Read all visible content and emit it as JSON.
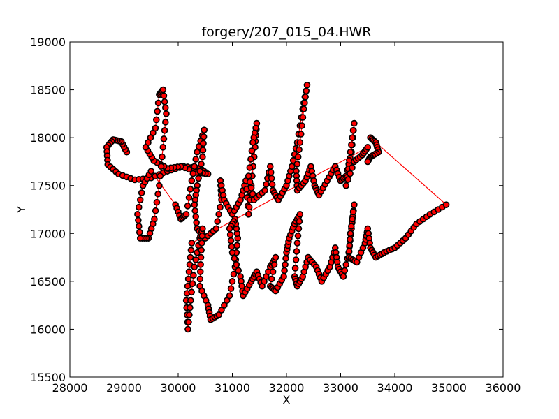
{
  "chart_data": {
    "type": "scatter",
    "title": "forgery/207_015_04.HWR",
    "xlabel": "X",
    "ylabel": "Y",
    "xlim": [
      28000,
      36000
    ],
    "ylim": [
      15500,
      19000
    ],
    "xticks": [
      "28000",
      "29000",
      "30000",
      "31000",
      "32000",
      "33000",
      "34000",
      "35000",
      "36000"
    ],
    "yticks": [
      "15500",
      "16000",
      "16500",
      "17000",
      "17500",
      "18000",
      "18500",
      "19000"
    ],
    "grid": false,
    "legend": "none",
    "marker_face_color": "#ff0000",
    "marker_edge_color": "#000000",
    "line_color": "#ff0000",
    "series": [
      {
        "points": [
          [
            29050,
            17850
          ],
          [
            28950,
            17960
          ],
          [
            28800,
            17980
          ],
          [
            28680,
            17900
          ],
          [
            28700,
            17720
          ],
          [
            28900,
            17620
          ],
          [
            29200,
            17560
          ],
          [
            29500,
            17580
          ],
          [
            29800,
            17650
          ],
          [
            30100,
            17700
          ],
          [
            30400,
            17680
          ],
          [
            30550,
            17620
          ],
          [
            30350,
            17640
          ],
          [
            30050,
            17700
          ],
          [
            29800,
            17680
          ],
          [
            29550,
            17760
          ],
          [
            29400,
            17900
          ],
          [
            29580,
            18100
          ],
          [
            29650,
            18450
          ],
          [
            29720,
            18500
          ],
          [
            29780,
            18250
          ],
          [
            29720,
            17900
          ],
          [
            29650,
            17500
          ],
          [
            29560,
            17150
          ],
          [
            29450,
            16950
          ],
          [
            29300,
            16950
          ],
          [
            29250,
            17200
          ],
          [
            29350,
            17500
          ],
          [
            29500,
            17650
          ]
        ]
      },
      {
        "points": [
          [
            29950,
            17300
          ],
          [
            30050,
            17150
          ],
          [
            30150,
            17200
          ],
          [
            30250,
            17550
          ],
          [
            30350,
            17850
          ],
          [
            30480,
            18080
          ],
          [
            30450,
            17800
          ],
          [
            30350,
            17500
          ],
          [
            30300,
            17300
          ],
          [
            30350,
            17050
          ],
          [
            30500,
            16950
          ],
          [
            30700,
            17050
          ],
          [
            30800,
            17350
          ],
          [
            30780,
            17550
          ],
          [
            30850,
            17350
          ],
          [
            31000,
            17200
          ],
          [
            31150,
            17350
          ],
          [
            31250,
            17550
          ],
          [
            31300,
            17200
          ],
          [
            31350,
            17500
          ],
          [
            31420,
            17900
          ],
          [
            31450,
            18150
          ],
          [
            31380,
            17950
          ],
          [
            31300,
            17600
          ],
          [
            31400,
            17350
          ],
          [
            31600,
            17450
          ],
          [
            31700,
            17700
          ],
          [
            31750,
            17450
          ],
          [
            31850,
            17350
          ],
          [
            32000,
            17500
          ],
          [
            32100,
            17700
          ],
          [
            32200,
            17950
          ],
          [
            32300,
            18300
          ],
          [
            32380,
            18550
          ],
          [
            32320,
            18300
          ],
          [
            32250,
            17950
          ],
          [
            32180,
            17650
          ],
          [
            32200,
            17450
          ],
          [
            32350,
            17550
          ],
          [
            32450,
            17700
          ],
          [
            32520,
            17500
          ],
          [
            32600,
            17400
          ],
          [
            32750,
            17550
          ],
          [
            32900,
            17700
          ],
          [
            33000,
            17550
          ],
          [
            33100,
            17600
          ],
          [
            33200,
            17850
          ],
          [
            33250,
            18150
          ],
          [
            33180,
            17850
          ],
          [
            33100,
            17500
          ],
          [
            33250,
            17750
          ],
          [
            33400,
            17820
          ],
          [
            33500,
            17900
          ]
        ]
      },
      {
        "points": [
          [
            30250,
            16900
          ],
          [
            30200,
            16600
          ],
          [
            30150,
            16300
          ],
          [
            30180,
            16000
          ],
          [
            30230,
            16300
          ],
          [
            30300,
            16650
          ],
          [
            30400,
            16950
          ],
          [
            30450,
            17050
          ],
          [
            30420,
            16750
          ],
          [
            30400,
            16450
          ],
          [
            30550,
            16250
          ],
          [
            30600,
            16100
          ],
          [
            30750,
            16150
          ],
          [
            30950,
            16350
          ],
          [
            31050,
            16650
          ],
          [
            31100,
            16950
          ],
          [
            31050,
            17150
          ],
          [
            30950,
            17050
          ],
          [
            31000,
            16800
          ],
          [
            31150,
            16550
          ],
          [
            31200,
            16350
          ],
          [
            31350,
            16500
          ],
          [
            31450,
            16600
          ],
          [
            31550,
            16450
          ],
          [
            31700,
            16650
          ],
          [
            31800,
            16750
          ],
          [
            31700,
            16450
          ],
          [
            31800,
            16400
          ],
          [
            31950,
            16550
          ],
          [
            32000,
            16800
          ],
          [
            32050,
            16950
          ],
          [
            32150,
            17100
          ],
          [
            32250,
            17200
          ],
          [
            32200,
            16900
          ],
          [
            32150,
            16550
          ],
          [
            32200,
            16450
          ],
          [
            32300,
            16550
          ],
          [
            32400,
            16750
          ],
          [
            32550,
            16650
          ],
          [
            32650,
            16500
          ],
          [
            32800,
            16650
          ],
          [
            32900,
            16850
          ],
          [
            32950,
            16650
          ],
          [
            33050,
            16550
          ],
          [
            33150,
            16800
          ],
          [
            33200,
            17050
          ],
          [
            33250,
            17300
          ],
          [
            33180,
            17000
          ],
          [
            33150,
            16750
          ],
          [
            33300,
            16700
          ],
          [
            33450,
            16900
          ],
          [
            33500,
            17050
          ],
          [
            33550,
            16850
          ],
          [
            33650,
            16750
          ],
          [
            33800,
            16800
          ],
          [
            34000,
            16850
          ],
          [
            34200,
            16950
          ],
          [
            34400,
            17100
          ],
          [
            34650,
            17200
          ],
          [
            34950,
            17300
          ]
        ]
      },
      {
        "points": [
          [
            33550,
            18000
          ],
          [
            33650,
            17950
          ],
          [
            33700,
            17850
          ],
          [
            33550,
            17800
          ],
          [
            33500,
            17750
          ]
        ]
      }
    ]
  }
}
